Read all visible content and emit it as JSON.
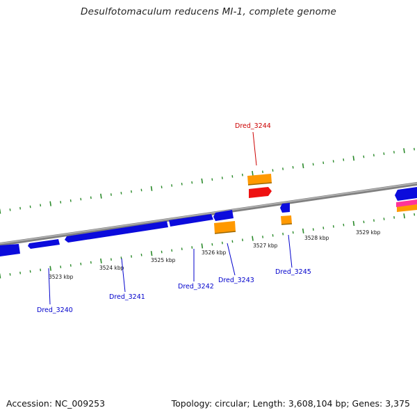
{
  "title": "Desulfotomaculum reducens MI-1, complete genome",
  "footer": {
    "accession": "Accession: NC_009253",
    "summary": "Topology: circular; Length: 3,608,104 bp; Genes: 3,375"
  },
  "colors": {
    "forward_gene": "#0b0bdc",
    "reverse_gene": "#0b0bdc",
    "highlight_gene": "#ee1111",
    "orange_feature": "#ff9900",
    "pink_feature": "#ff3399",
    "backbone": "#888888",
    "tick": "#2a8a2a",
    "label_blue": "#0000cc",
    "label_red": "#cc0000"
  },
  "scale_labels": [
    "3523 kbp",
    "3524 kbp",
    "3525 kbp",
    "3526 kbp",
    "3527 kbp",
    "3528 kbp",
    "3529 kbp"
  ],
  "gene_labels": [
    {
      "text": "Dred_3240",
      "color": "blue"
    },
    {
      "text": "Dred_3241",
      "color": "blue"
    },
    {
      "text": "Dred_3242",
      "color": "blue"
    },
    {
      "text": "Dred_3243",
      "color": "blue"
    },
    {
      "text": "Dred_3244",
      "color": "red"
    },
    {
      "text": "Dred_3245",
      "color": "blue"
    }
  ]
}
